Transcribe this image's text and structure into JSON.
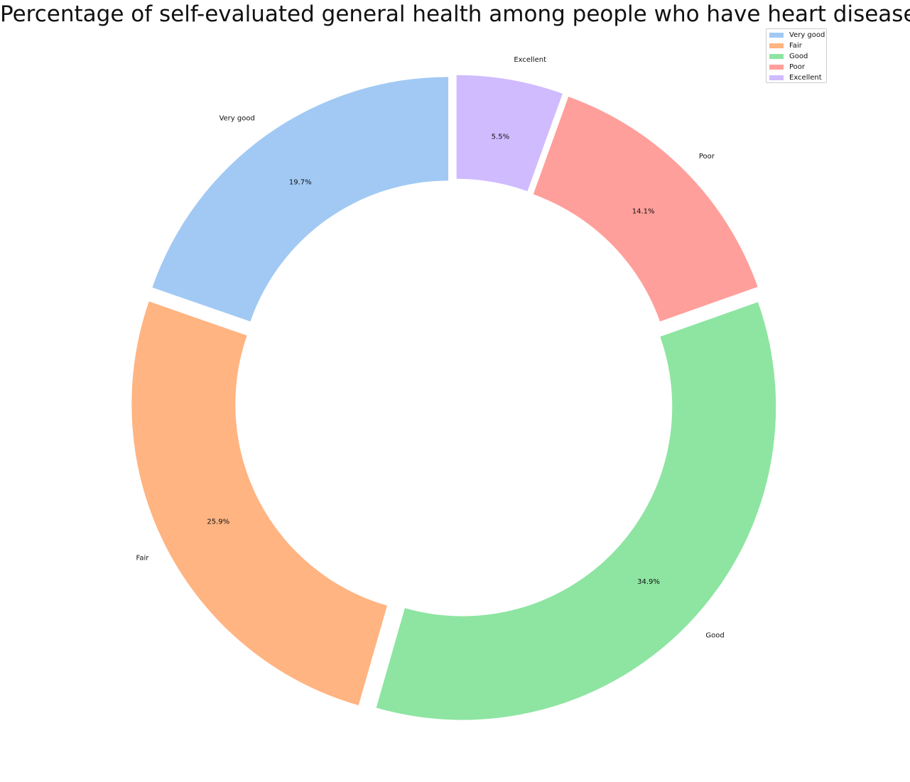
{
  "chart_data": {
    "type": "pie",
    "title": "Percentage of self-evaluated general health among people who have heart diseases",
    "categories": [
      "Very good",
      "Fair",
      "Good",
      "Poor",
      "Excellent"
    ],
    "values": [
      19.7,
      25.9,
      34.9,
      14.1,
      5.5
    ],
    "value_labels": [
      "19.7%",
      "25.9%",
      "34.9%",
      "14.1%",
      "5.5%"
    ],
    "colors": [
      "#a1c9f4",
      "#ffb482",
      "#8de5a1",
      "#ff9f9b",
      "#d0bbff"
    ],
    "start_angle_deg": 90,
    "direction": "counterclockwise",
    "donut": true,
    "exploded": true,
    "legend": {
      "position": "top-right",
      "entries": [
        "Very good",
        "Fair",
        "Good",
        "Poor",
        "Excellent"
      ]
    }
  }
}
